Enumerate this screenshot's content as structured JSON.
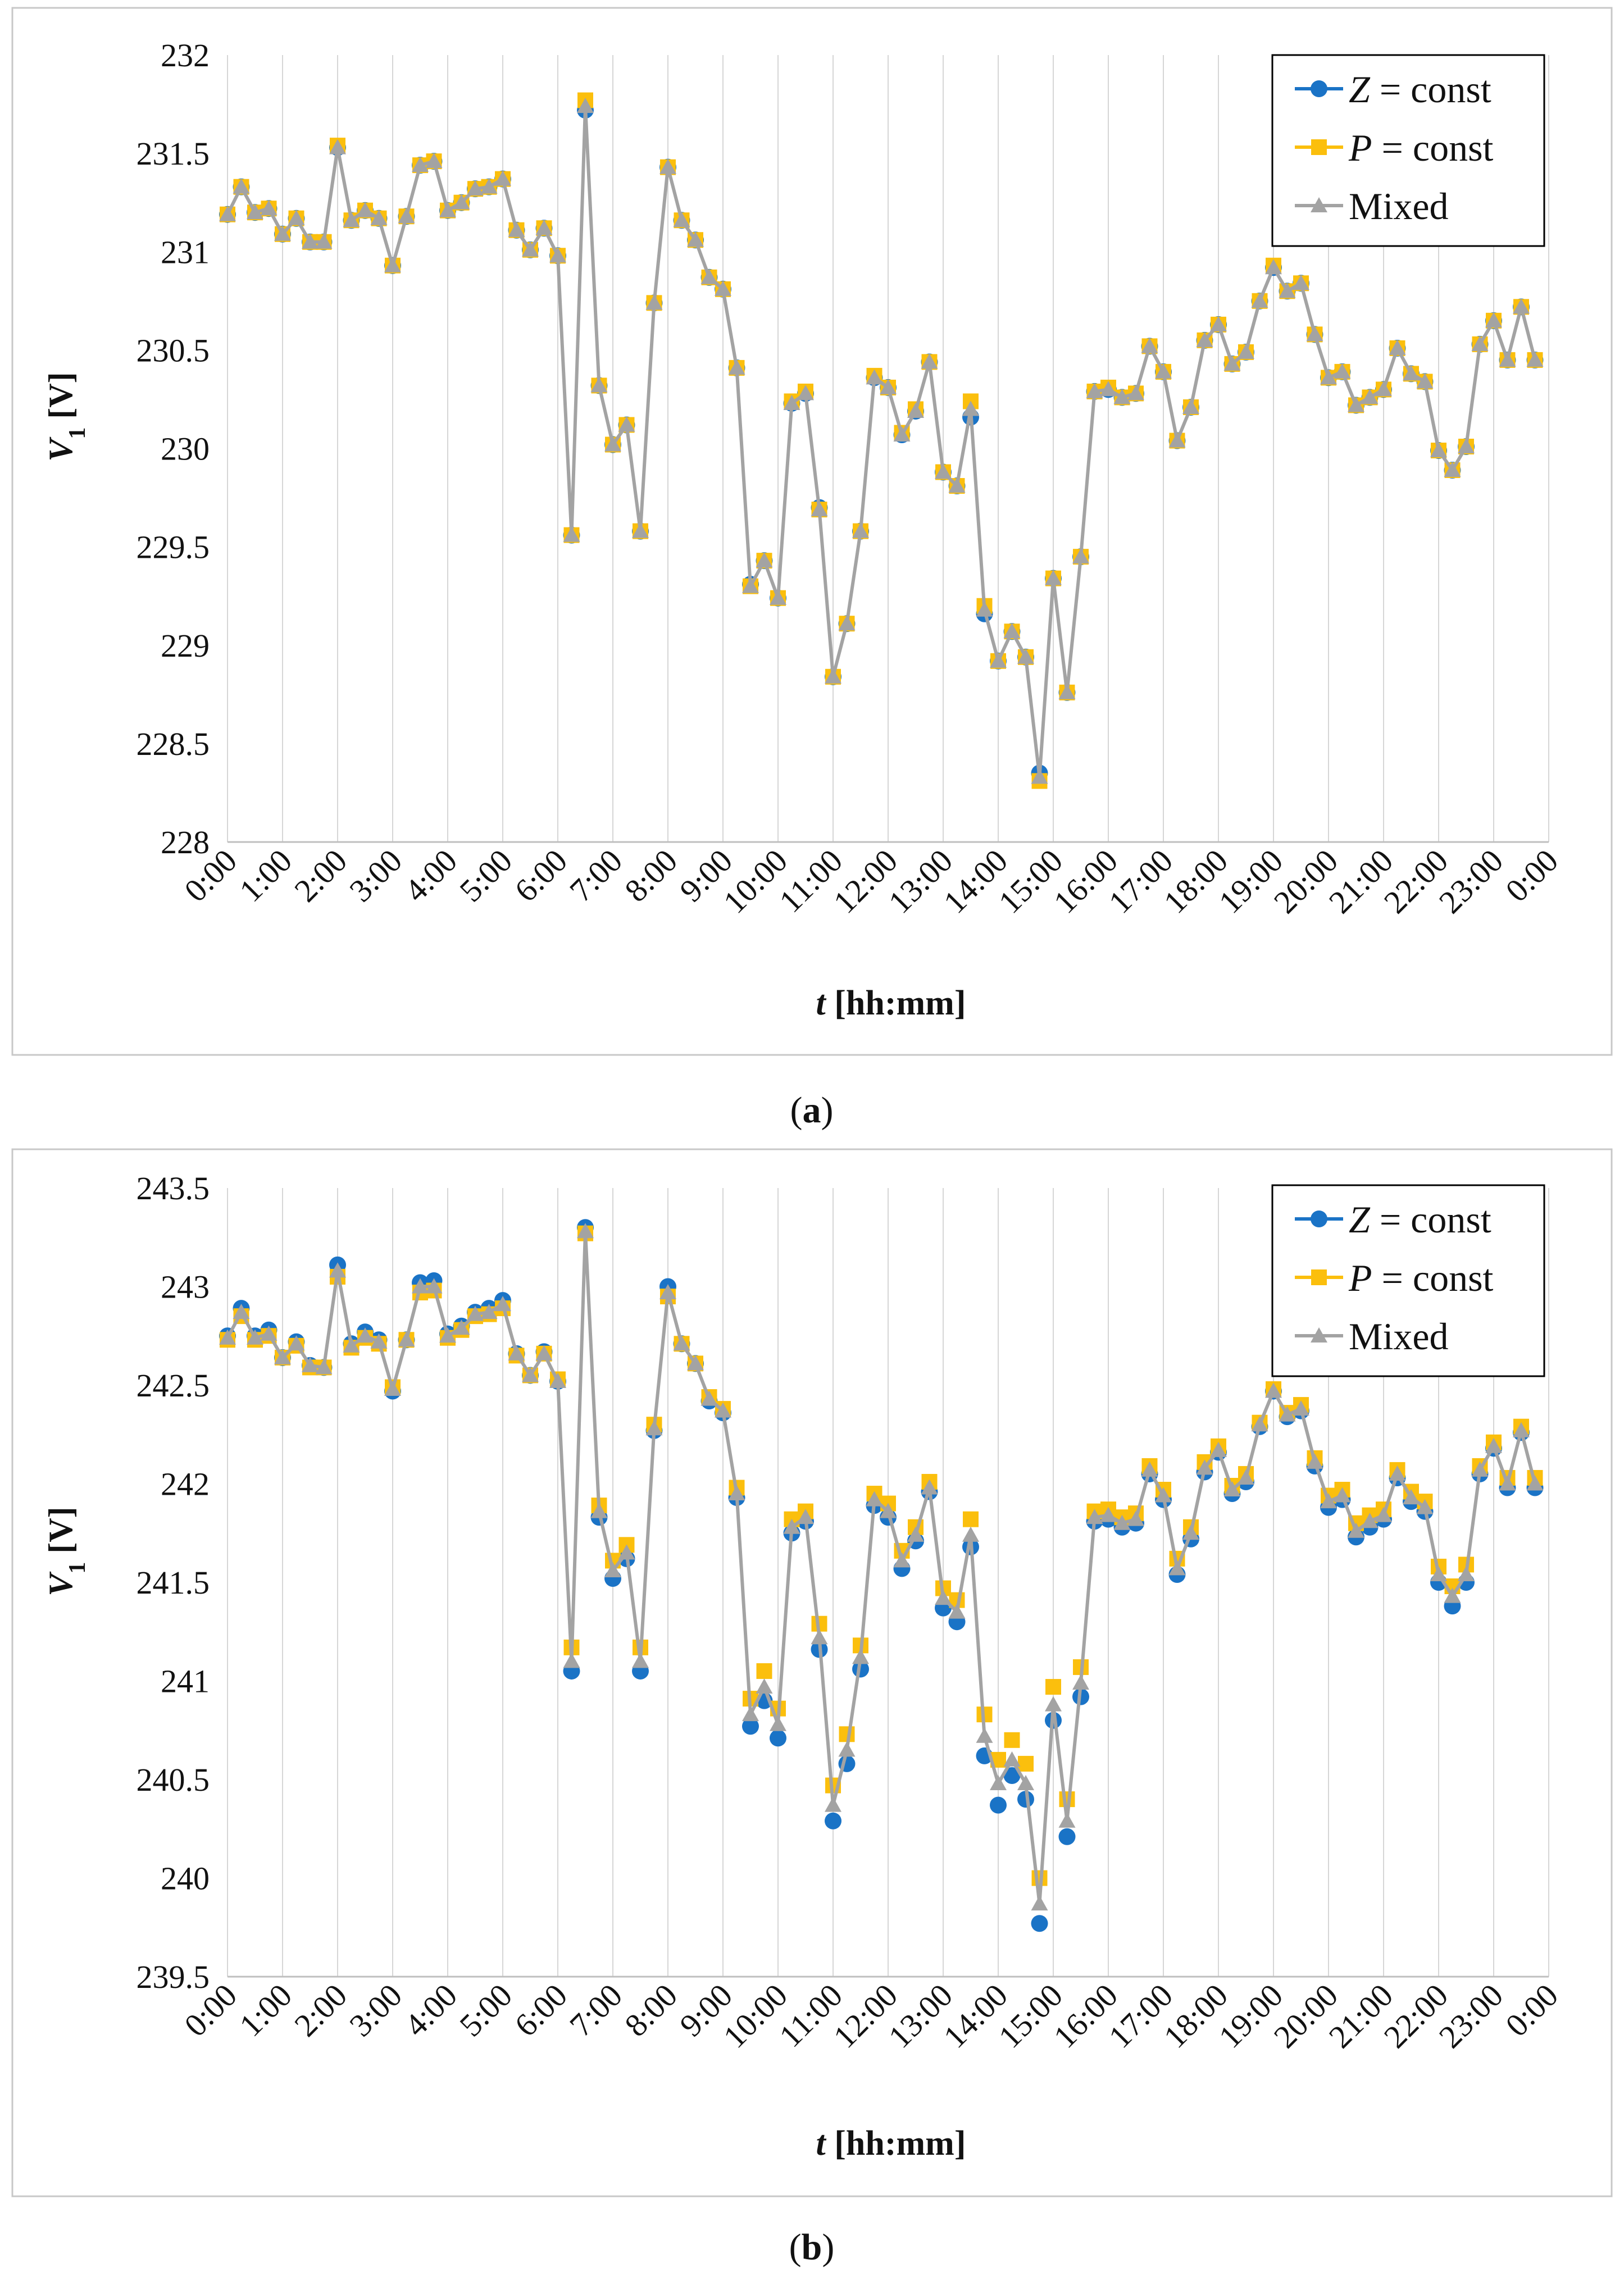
{
  "colors": {
    "z": "#1a73c6",
    "p": "#fbbf0d",
    "m": "#a3a3a3",
    "grid": "#d6d6d6",
    "frame": "#c8c8c8",
    "legend_border": "#000000"
  },
  "chart_data": [
    {
      "type": "line",
      "caption": "(a)",
      "caption_open": "(",
      "caption_letter": "a",
      "caption_close": ")",
      "ylabel_main": "V",
      "ylabel_sub": "1",
      "ylabel_unit": " [V]",
      "xlabel_main": "t",
      "xlabel_unit": " [hh:mm]",
      "ylim": [
        228,
        232
      ],
      "yticks": [
        228,
        228.5,
        229,
        229.5,
        230,
        230.5,
        231,
        231.5,
        232
      ],
      "ytick_labels": [
        "228",
        "228.5",
        "229",
        "229.5",
        "230",
        "230.5",
        "231",
        "231.5",
        "232"
      ],
      "grid": "vertical",
      "legend_position": "top-right",
      "x_tick_labels": [
        "0:00",
        "1:00",
        "2:00",
        "3:00",
        "4:00",
        "5:00",
        "6:00",
        "7:00",
        "8:00",
        "9:00",
        "10:00",
        "11:00",
        "12:00",
        "13:00",
        "14:00",
        "15:00",
        "16:00",
        "17:00",
        "18:00",
        "19:00",
        "20:00",
        "21:00",
        "22:00",
        "23:00",
        "0:00"
      ],
      "x_hours": [
        0,
        0.25,
        0.5,
        0.75,
        1,
        1.25,
        1.5,
        1.75,
        2,
        2.25,
        2.5,
        2.75,
        3,
        3.25,
        3.5,
        3.75,
        4,
        4.25,
        4.5,
        4.75,
        5,
        5.25,
        5.5,
        5.75,
        6,
        6.25,
        6.5,
        6.75,
        7,
        7.25,
        7.5,
        7.75,
        8,
        8.25,
        8.5,
        8.75,
        9,
        9.25,
        9.5,
        9.75,
        10,
        10.25,
        10.5,
        10.75,
        11,
        11.25,
        11.5,
        11.75,
        12,
        12.25,
        12.5,
        12.75,
        13,
        13.25,
        13.5,
        13.75,
        14,
        14.25,
        14.5,
        14.75,
        15,
        15.25,
        15.5,
        15.75,
        16,
        16.25,
        16.5,
        16.75,
        17,
        17.25,
        17.5,
        17.75,
        18,
        18.25,
        18.5,
        18.75,
        19,
        19.25,
        19.5,
        19.75,
        20,
        20.25,
        20.5,
        20.75,
        21,
        21.25,
        21.5,
        21.75,
        22,
        22.25,
        22.5,
        22.75,
        23,
        23.25,
        23.5,
        23.75
      ],
      "series": [
        {
          "name": "Z",
          "legend_var": "Z",
          "legend_rest": " = const",
          "marker": "circle",
          "values": [
            231.19,
            231.33,
            231.2,
            231.22,
            231.09,
            231.17,
            231.05,
            231.05,
            231.53,
            231.16,
            231.21,
            231.17,
            230.93,
            231.18,
            231.44,
            231.46,
            231.21,
            231.25,
            231.32,
            231.33,
            231.37,
            231.11,
            231.01,
            231.12,
            230.98,
            229.56,
            231.72,
            230.32,
            230.02,
            230.12,
            229.58,
            230.74,
            231.43,
            231.16,
            231.06,
            230.87,
            230.81,
            230.41,
            229.31,
            229.43,
            229.24,
            230.23,
            230.28,
            229.7,
            228.84,
            229.11,
            229.58,
            230.36,
            230.31,
            230.07,
            230.19,
            230.44,
            229.88,
            229.81,
            230.16,
            229.16,
            228.92,
            229.07,
            228.94,
            228.35,
            229.34,
            228.76,
            229.45,
            230.29,
            230.3,
            230.26,
            230.28,
            230.52,
            230.39,
            230.04,
            230.21,
            230.55,
            230.63,
            230.43,
            230.49,
            230.75,
            230.92,
            230.8,
            230.84,
            230.58,
            230.36,
            230.39,
            230.22,
            230.26,
            230.3,
            230.51,
            230.38,
            230.34,
            229.99,
            229.89,
            230.01,
            230.53,
            230.65,
            230.45,
            230.72,
            230.45
          ]
        },
        {
          "name": "P",
          "legend_var": "P",
          "legend_rest": " = const",
          "marker": "square",
          "values": [
            231.19,
            231.33,
            231.2,
            231.22,
            231.09,
            231.17,
            231.05,
            231.05,
            231.54,
            231.16,
            231.21,
            231.17,
            230.93,
            231.18,
            231.44,
            231.46,
            231.21,
            231.25,
            231.32,
            231.33,
            231.37,
            231.11,
            231.01,
            231.12,
            230.98,
            229.56,
            231.77,
            230.32,
            230.02,
            230.12,
            229.58,
            230.74,
            231.43,
            231.16,
            231.06,
            230.87,
            230.81,
            230.41,
            229.3,
            229.43,
            229.24,
            230.24,
            230.29,
            229.69,
            228.84,
            229.11,
            229.58,
            230.37,
            230.31,
            230.08,
            230.2,
            230.44,
            229.88,
            229.81,
            230.24,
            229.2,
            228.92,
            229.07,
            228.94,
            228.31,
            229.34,
            228.76,
            229.45,
            230.29,
            230.31,
            230.26,
            230.28,
            230.52,
            230.39,
            230.04,
            230.21,
            230.55,
            230.63,
            230.43,
            230.49,
            230.75,
            230.93,
            230.8,
            230.84,
            230.58,
            230.36,
            230.39,
            230.22,
            230.26,
            230.3,
            230.51,
            230.38,
            230.34,
            229.99,
            229.89,
            230.01,
            230.53,
            230.65,
            230.45,
            230.72,
            230.45
          ]
        },
        {
          "name": "Mixed",
          "legend_var": "",
          "legend_rest": "Mixed",
          "marker": "triangle",
          "values": [
            231.19,
            231.33,
            231.2,
            231.22,
            231.09,
            231.17,
            231.05,
            231.05,
            231.53,
            231.16,
            231.21,
            231.17,
            230.93,
            231.18,
            231.44,
            231.46,
            231.21,
            231.25,
            231.32,
            231.33,
            231.37,
            231.11,
            231.01,
            231.12,
            230.98,
            229.56,
            231.74,
            230.32,
            230.02,
            230.12,
            229.58,
            230.74,
            231.43,
            231.16,
            231.06,
            230.87,
            230.81,
            230.41,
            229.3,
            229.43,
            229.24,
            230.23,
            230.28,
            229.69,
            228.84,
            229.11,
            229.58,
            230.36,
            230.31,
            230.07,
            230.19,
            230.44,
            229.88,
            229.81,
            230.2,
            229.18,
            228.92,
            229.07,
            228.94,
            228.33,
            229.34,
            228.76,
            229.45,
            230.29,
            230.3,
            230.26,
            230.28,
            230.52,
            230.39,
            230.04,
            230.21,
            230.55,
            230.63,
            230.43,
            230.49,
            230.75,
            230.92,
            230.8,
            230.84,
            230.58,
            230.36,
            230.39,
            230.22,
            230.26,
            230.3,
            230.51,
            230.38,
            230.34,
            229.99,
            229.89,
            230.01,
            230.53,
            230.65,
            230.45,
            230.72,
            230.45
          ]
        }
      ]
    },
    {
      "type": "line",
      "caption": "(b)",
      "caption_open": "(",
      "caption_letter": "b",
      "caption_close": ")",
      "ylabel_main": "V",
      "ylabel_sub": "1",
      "ylabel_unit": " [V]",
      "xlabel_main": "t",
      "xlabel_unit": " [hh:mm]",
      "ylim": [
        239.5,
        243.5
      ],
      "yticks": [
        239.5,
        240,
        240.5,
        241,
        241.5,
        242,
        242.5,
        243,
        243.5
      ],
      "ytick_labels": [
        "239.5",
        "240",
        "240.5",
        "241",
        "241.5",
        "242",
        "242.5",
        "243",
        "243.5"
      ],
      "grid": "vertical",
      "legend_position": "top-right",
      "x_tick_labels": [
        "0:00",
        "1:00",
        "2:00",
        "3:00",
        "4:00",
        "5:00",
        "6:00",
        "7:00",
        "8:00",
        "9:00",
        "10:00",
        "11:00",
        "12:00",
        "13:00",
        "14:00",
        "15:00",
        "16:00",
        "17:00",
        "18:00",
        "19:00",
        "20:00",
        "21:00",
        "22:00",
        "23:00",
        "0:00"
      ],
      "x_hours": [
        0,
        0.25,
        0.5,
        0.75,
        1,
        1.25,
        1.5,
        1.75,
        2,
        2.25,
        2.5,
        2.75,
        3,
        3.25,
        3.5,
        3.75,
        4,
        4.25,
        4.5,
        4.75,
        5,
        5.25,
        5.5,
        5.75,
        6,
        6.25,
        6.5,
        6.75,
        7,
        7.25,
        7.5,
        7.75,
        8,
        8.25,
        8.5,
        8.75,
        9,
        9.25,
        9.5,
        9.75,
        10,
        10.25,
        10.5,
        10.75,
        11,
        11.25,
        11.5,
        11.75,
        12,
        12.25,
        12.5,
        12.75,
        13,
        13.25,
        13.5,
        13.75,
        14,
        14.25,
        14.5,
        14.75,
        15,
        15.25,
        15.5,
        15.75,
        16,
        16.25,
        16.5,
        16.75,
        17,
        17.25,
        17.5,
        17.75,
        18,
        18.25,
        18.5,
        18.75,
        19,
        19.25,
        19.5,
        19.75,
        20,
        20.25,
        20.5,
        20.75,
        21,
        21.25,
        21.5,
        21.75,
        22,
        22.25,
        22.5,
        22.75,
        23,
        23.25,
        23.5,
        23.75
      ],
      "series": [
        {
          "name": "Z",
          "legend_var": "Z",
          "legend_rest": " = const",
          "marker": "circle",
          "values": [
            242.75,
            242.89,
            242.75,
            242.78,
            242.64,
            242.72,
            242.6,
            242.59,
            243.11,
            242.71,
            242.77,
            242.73,
            242.47,
            242.73,
            243.02,
            243.03,
            242.76,
            242.8,
            242.87,
            242.89,
            242.93,
            242.66,
            242.55,
            242.67,
            242.52,
            241.05,
            243.3,
            241.83,
            241.52,
            241.62,
            241.05,
            242.27,
            243.0,
            242.71,
            242.61,
            242.42,
            242.36,
            241.93,
            240.77,
            240.9,
            240.71,
            241.75,
            241.81,
            241.16,
            240.29,
            240.58,
            241.06,
            241.89,
            241.83,
            241.57,
            241.71,
            241.96,
            241.37,
            241.3,
            241.68,
            240.62,
            240.37,
            240.52,
            240.4,
            239.77,
            240.8,
            240.21,
            240.92,
            241.81,
            241.82,
            241.78,
            241.8,
            242.05,
            241.92,
            241.54,
            241.72,
            242.06,
            242.16,
            241.95,
            242.01,
            242.29,
            242.47,
            242.34,
            242.37,
            242.09,
            241.88,
            241.92,
            241.73,
            241.78,
            241.82,
            242.03,
            241.91,
            241.86,
            241.5,
            241.38,
            241.5,
            242.05,
            242.18,
            241.98,
            242.26,
            241.98
          ]
        },
        {
          "name": "P",
          "legend_var": "P",
          "legend_rest": " = const",
          "marker": "square",
          "values": [
            242.73,
            242.85,
            242.73,
            242.75,
            242.64,
            242.7,
            242.59,
            242.59,
            243.05,
            242.69,
            242.74,
            242.71,
            242.49,
            242.73,
            242.97,
            242.98,
            242.74,
            242.78,
            242.85,
            242.86,
            242.89,
            242.65,
            242.55,
            242.66,
            242.53,
            241.17,
            243.27,
            241.89,
            241.61,
            241.69,
            241.17,
            242.3,
            242.95,
            242.71,
            242.61,
            242.44,
            242.38,
            241.98,
            240.91,
            241.05,
            240.86,
            241.82,
            241.86,
            241.29,
            240.47,
            240.73,
            241.18,
            241.95,
            241.9,
            241.66,
            241.78,
            242.01,
            241.47,
            241.41,
            241.82,
            240.83,
            240.6,
            240.7,
            240.58,
            240.0,
            240.97,
            240.4,
            241.07,
            241.86,
            241.87,
            241.83,
            241.85,
            242.09,
            241.97,
            241.62,
            241.78,
            242.11,
            242.19,
            241.99,
            242.05,
            242.31,
            242.48,
            242.36,
            242.4,
            242.13,
            241.94,
            241.97,
            241.8,
            241.84,
            241.87,
            242.07,
            241.96,
            241.91,
            241.58,
            241.48,
            241.59,
            242.09,
            242.21,
            242.03,
            242.29,
            242.03
          ]
        },
        {
          "name": "Mixed",
          "legend_var": "",
          "legend_rest": "Mixed",
          "marker": "triangle",
          "values": [
            242.74,
            242.87,
            242.74,
            242.76,
            242.64,
            242.71,
            242.6,
            242.59,
            243.08,
            242.7,
            242.75,
            242.72,
            242.48,
            242.73,
            243.0,
            243.0,
            242.75,
            242.79,
            242.86,
            242.87,
            242.91,
            242.66,
            242.55,
            242.66,
            242.52,
            241.1,
            243.28,
            241.86,
            241.56,
            241.65,
            241.1,
            242.28,
            242.97,
            242.71,
            242.61,
            242.43,
            242.37,
            241.95,
            240.83,
            240.97,
            240.78,
            241.78,
            241.83,
            241.22,
            240.37,
            240.65,
            241.12,
            241.92,
            241.86,
            241.61,
            241.74,
            241.98,
            241.42,
            241.35,
            241.74,
            240.72,
            240.48,
            240.6,
            240.48,
            239.87,
            240.88,
            240.29,
            240.99,
            241.83,
            241.84,
            241.8,
            241.82,
            242.07,
            241.94,
            241.57,
            241.75,
            242.08,
            242.17,
            241.97,
            242.03,
            242.3,
            242.47,
            242.35,
            242.38,
            242.11,
            241.91,
            241.94,
            241.76,
            241.81,
            241.84,
            242.05,
            241.93,
            241.88,
            241.54,
            241.43,
            241.54,
            242.07,
            242.19,
            242.0,
            242.27,
            242.0
          ]
        }
      ]
    }
  ]
}
